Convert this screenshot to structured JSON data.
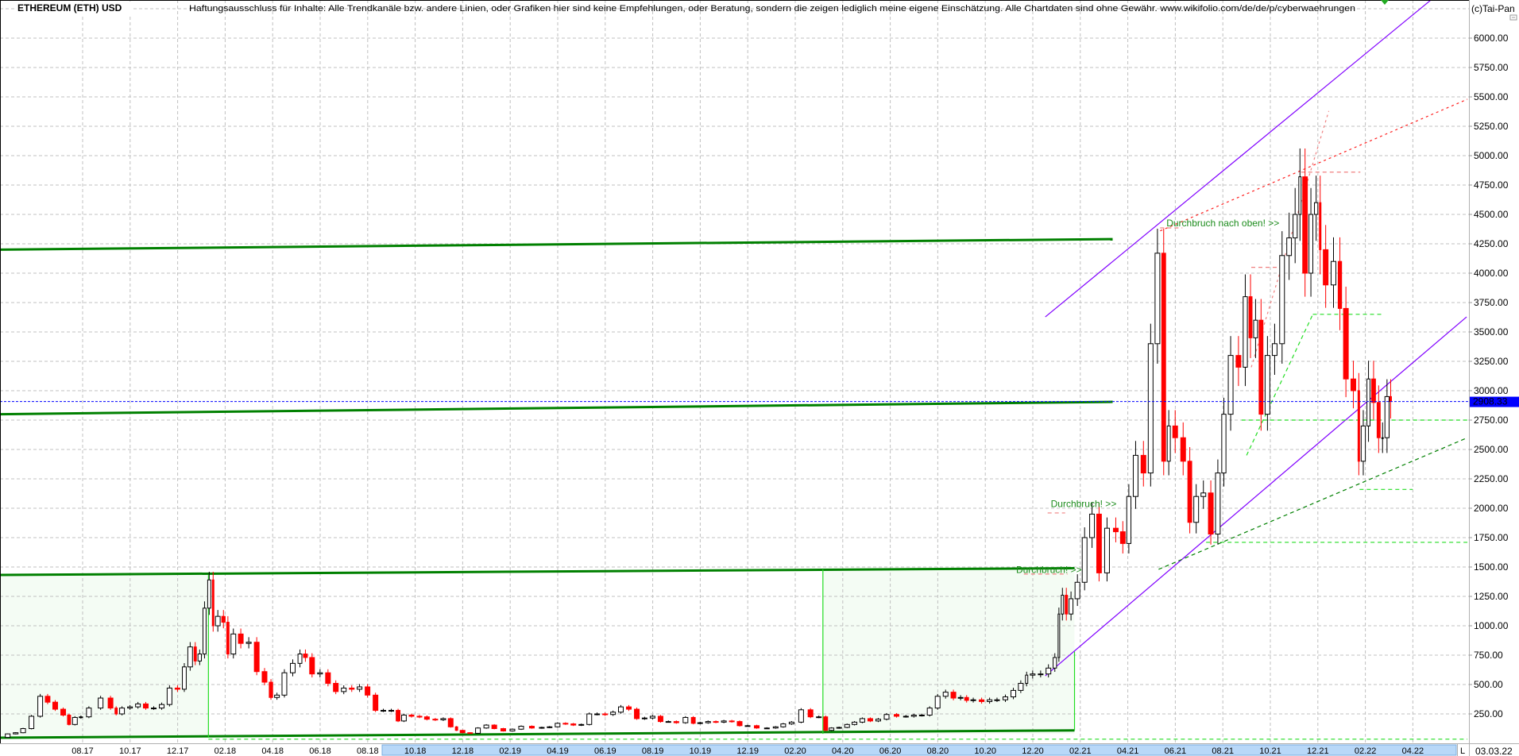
{
  "header": {
    "title": "ETHEREUM (ETH) USD",
    "disclaimer": "Haftungsausschluss für Inhalte: Alle Trendkanäle bzw. andere Linien, oder Grafiken hier sind keine Empfehlungen, oder Beratung, sondern die zeigen lediglich meine eigene Einschätzung. Alle Chartdaten sind ohne Gewähr.  www.wikifolio.com/de/de/p/cyberwaehrungen",
    "copyright": "(c)Tai-Pan"
  },
  "footer": {
    "scale_mode": "L",
    "current_date": "03.03.22"
  },
  "colors": {
    "up_candle": "#000000",
    "down_candle": "#ff0000",
    "channel_green": "#008000",
    "bright_green": "#22dd22",
    "purple": "#8000ff",
    "red_dotted": "#ff2020",
    "light_red": "#f08080",
    "price_line": "#0000ff",
    "grid": "#c0c0c0",
    "scroll_bar": "#b8d8f8"
  },
  "chart_data": {
    "type": "candlestick",
    "title": "ETHEREUM (ETH) USD",
    "ylim": [
      0,
      6250
    ],
    "y_ticks": [
      "250.00",
      "500.00",
      "750.00",
      "1000.00",
      "1250.00",
      "1500.00",
      "1750.00",
      "2000.00",
      "2250.00",
      "2500.00",
      "2750.00",
      "3000.00",
      "3250.00",
      "3500.00",
      "3750.00",
      "4000.00",
      "4250.00",
      "4500.00",
      "4750.00",
      "5000.00",
      "5250.00",
      "5500.00",
      "5750.00",
      "6000.00"
    ],
    "x_ticks": [
      "08.17",
      "10.17",
      "12.17",
      "02.18",
      "04.18",
      "06.18",
      "08.18",
      "10.18",
      "12.18",
      "02.19",
      "04.19",
      "06.19",
      "08.19",
      "10.19",
      "12.19",
      "02.20",
      "04.20",
      "06.20",
      "08.20",
      "10.20",
      "12.20",
      "02.21",
      "04.21",
      "06.21",
      "08.21",
      "10.21",
      "12.21",
      "02.22",
      "04.22"
    ],
    "grid": true,
    "last_price": {
      "value": 2908.33,
      "label": "2908.33"
    },
    "closes": [
      [
        "2017-04-20",
        50
      ],
      [
        "2017-05-01",
        80
      ],
      [
        "2017-05-10",
        90
      ],
      [
        "2017-05-20",
        125
      ],
      [
        "2017-06-01",
        230
      ],
      [
        "2017-06-12",
        400
      ],
      [
        "2017-06-20",
        350
      ],
      [
        "2017-07-01",
        290
      ],
      [
        "2017-07-10",
        240
      ],
      [
        "2017-07-16",
        160
      ],
      [
        "2017-07-25",
        220
      ],
      [
        "2017-08-01",
        225
      ],
      [
        "2017-08-15",
        300
      ],
      [
        "2017-08-31",
        385
      ],
      [
        "2017-09-10",
        300
      ],
      [
        "2017-09-15",
        250
      ],
      [
        "2017-09-25",
        300
      ],
      [
        "2017-10-05",
        310
      ],
      [
        "2017-10-15",
        335
      ],
      [
        "2017-10-25",
        300
      ],
      [
        "2017-11-05",
        300
      ],
      [
        "2017-11-15",
        330
      ],
      [
        "2017-11-25",
        470
      ],
      [
        "2017-12-05",
        460
      ],
      [
        "2017-12-12",
        650
      ],
      [
        "2017-12-20",
        820
      ],
      [
        "2017-12-25",
        700
      ],
      [
        "2018-01-01",
        760
      ],
      [
        "2018-01-07",
        1150
      ],
      [
        "2018-01-13",
        1390
      ],
      [
        "2018-01-17",
        1000
      ],
      [
        "2018-01-25",
        1080
      ],
      [
        "2018-02-01",
        1030
      ],
      [
        "2018-02-06",
        760
      ],
      [
        "2018-02-15",
        930
      ],
      [
        "2018-02-25",
        850
      ],
      [
        "2018-03-05",
        860
      ],
      [
        "2018-03-15",
        610
      ],
      [
        "2018-03-25",
        520
      ],
      [
        "2018-04-01",
        390
      ],
      [
        "2018-04-10",
        410
      ],
      [
        "2018-04-20",
        600
      ],
      [
        "2018-05-01",
        680
      ],
      [
        "2018-05-08",
        760
      ],
      [
        "2018-05-15",
        730
      ],
      [
        "2018-05-25",
        590
      ],
      [
        "2018-06-05",
        600
      ],
      [
        "2018-06-15",
        510
      ],
      [
        "2018-06-25",
        440
      ],
      [
        "2018-07-05",
        470
      ],
      [
        "2018-07-15",
        460
      ],
      [
        "2018-07-25",
        480
      ],
      [
        "2018-08-05",
        410
      ],
      [
        "2018-08-15",
        280
      ],
      [
        "2018-08-25",
        280
      ],
      [
        "2018-09-05",
        280
      ],
      [
        "2018-09-12",
        190
      ],
      [
        "2018-09-20",
        240
      ],
      [
        "2018-10-01",
        230
      ],
      [
        "2018-10-10",
        225
      ],
      [
        "2018-10-20",
        205
      ],
      [
        "2018-11-01",
        200
      ],
      [
        "2018-11-10",
        210
      ],
      [
        "2018-11-20",
        140
      ],
      [
        "2018-11-25",
        110
      ],
      [
        "2018-12-05",
        90
      ],
      [
        "2018-12-14",
        85
      ],
      [
        "2018-12-25",
        130
      ],
      [
        "2019-01-05",
        155
      ],
      [
        "2019-01-15",
        125
      ],
      [
        "2019-01-28",
        105
      ],
      [
        "2019-02-08",
        120
      ],
      [
        "2019-02-20",
        145
      ],
      [
        "2019-03-05",
        130
      ],
      [
        "2019-03-15",
        135
      ],
      [
        "2019-03-25",
        140
      ],
      [
        "2019-04-05",
        170
      ],
      [
        "2019-04-15",
        165
      ],
      [
        "2019-04-25",
        155
      ],
      [
        "2019-05-05",
        160
      ],
      [
        "2019-05-15",
        250
      ],
      [
        "2019-05-25",
        250
      ],
      [
        "2019-06-05",
        245
      ],
      [
        "2019-06-15",
        265
      ],
      [
        "2019-06-25",
        310
      ],
      [
        "2019-07-05",
        290
      ],
      [
        "2019-07-15",
        210
      ],
      [
        "2019-07-25",
        215
      ],
      [
        "2019-08-05",
        230
      ],
      [
        "2019-08-15",
        185
      ],
      [
        "2019-08-25",
        185
      ],
      [
        "2019-09-05",
        175
      ],
      [
        "2019-09-18",
        220
      ],
      [
        "2019-09-25",
        170
      ],
      [
        "2019-10-05",
        175
      ],
      [
        "2019-10-15",
        185
      ],
      [
        "2019-10-25",
        180
      ],
      [
        "2019-11-05",
        190
      ],
      [
        "2019-11-15",
        185
      ],
      [
        "2019-11-25",
        150
      ],
      [
        "2019-12-05",
        150
      ],
      [
        "2019-12-18",
        130
      ],
      [
        "2019-12-31",
        130
      ],
      [
        "2020-01-10",
        140
      ],
      [
        "2020-01-20",
        165
      ],
      [
        "2020-02-01",
        180
      ],
      [
        "2020-02-14",
        285
      ],
      [
        "2020-02-25",
        225
      ],
      [
        "2020-03-05",
        225
      ],
      [
        "2020-03-12",
        110
      ],
      [
        "2020-03-20",
        130
      ],
      [
        "2020-04-01",
        135
      ],
      [
        "2020-04-10",
        160
      ],
      [
        "2020-04-20",
        180
      ],
      [
        "2020-04-30",
        210
      ],
      [
        "2020-05-10",
        190
      ],
      [
        "2020-05-20",
        205
      ],
      [
        "2020-06-01",
        245
      ],
      [
        "2020-06-15",
        230
      ],
      [
        "2020-06-25",
        230
      ],
      [
        "2020-07-05",
        240
      ],
      [
        "2020-07-15",
        240
      ],
      [
        "2020-07-25",
        300
      ],
      [
        "2020-08-05",
        400
      ],
      [
        "2020-08-15",
        435
      ],
      [
        "2020-08-25",
        385
      ],
      [
        "2020-09-03",
        390
      ],
      [
        "2020-09-10",
        365
      ],
      [
        "2020-09-20",
        370
      ],
      [
        "2020-10-01",
        355
      ],
      [
        "2020-10-10",
        370
      ],
      [
        "2020-10-20",
        370
      ],
      [
        "2020-11-01",
        395
      ],
      [
        "2020-11-10",
        450
      ],
      [
        "2020-11-20",
        510
      ],
      [
        "2020-11-25",
        580
      ],
      [
        "2020-12-05",
        590
      ],
      [
        "2020-12-15",
        590
      ],
      [
        "2020-12-25",
        640
      ],
      [
        "2021-01-01",
        730
      ],
      [
        "2021-01-05",
        1100
      ],
      [
        "2021-01-10",
        1260
      ],
      [
        "2021-01-15",
        1100
      ],
      [
        "2021-01-22",
        1230
      ],
      [
        "2021-02-01",
        1370
      ],
      [
        "2021-02-10",
        1750
      ],
      [
        "2021-02-20",
        1950
      ],
      [
        "2021-02-28",
        1450
      ],
      [
        "2021-03-10",
        1830
      ],
      [
        "2021-03-20",
        1800
      ],
      [
        "2021-03-28",
        1700
      ],
      [
        "2021-04-05",
        2100
      ],
      [
        "2021-04-15",
        2450
      ],
      [
        "2021-04-25",
        2300
      ],
      [
        "2021-05-03",
        3400
      ],
      [
        "2021-05-12",
        4170
      ],
      [
        "2021-05-19",
        2400
      ],
      [
        "2021-05-25",
        2700
      ],
      [
        "2021-06-05",
        2600
      ],
      [
        "2021-06-15",
        2400
      ],
      [
        "2021-06-22",
        1880
      ],
      [
        "2021-07-01",
        2100
      ],
      [
        "2021-07-10",
        2130
      ],
      [
        "2021-07-20",
        1780
      ],
      [
        "2021-07-28",
        2300
      ],
      [
        "2021-08-05",
        2800
      ],
      [
        "2021-08-15",
        3300
      ],
      [
        "2021-08-25",
        3200
      ],
      [
        "2021-09-02",
        3800
      ],
      [
        "2021-09-08",
        3450
      ],
      [
        "2021-09-15",
        3600
      ],
      [
        "2021-09-22",
        2800
      ],
      [
        "2021-10-01",
        3300
      ],
      [
        "2021-10-10",
        3400
      ],
      [
        "2021-10-20",
        4150
      ],
      [
        "2021-10-28",
        4300
      ],
      [
        "2021-11-05",
        4500
      ],
      [
        "2021-11-10",
        4820
      ],
      [
        "2021-11-18",
        4000
      ],
      [
        "2021-11-25",
        4500
      ],
      [
        "2021-12-01",
        4600
      ],
      [
        "2021-12-05",
        4200
      ],
      [
        "2021-12-15",
        3900
      ],
      [
        "2021-12-25",
        4100
      ],
      [
        "2022-01-01",
        3700
      ],
      [
        "2022-01-10",
        3100
      ],
      [
        "2022-01-20",
        3000
      ],
      [
        "2022-01-24",
        2400
      ],
      [
        "2022-02-01",
        2700
      ],
      [
        "2022-02-07",
        3100
      ],
      [
        "2022-02-14",
        2900
      ],
      [
        "2022-02-20",
        2600
      ],
      [
        "2022-02-24",
        2600
      ],
      [
        "2022-03-01",
        2950
      ],
      [
        "2022-03-03",
        2908.33
      ]
    ],
    "lines": [
      {
        "kind": "channel",
        "color": "#008000",
        "style": "thick",
        "points": [
          [
            "2017-04-15",
            4200
          ],
          [
            "2021-03-12",
            4290
          ]
        ]
      },
      {
        "kind": "channel",
        "color": "#008000",
        "style": "thick",
        "points": [
          [
            "2017-04-15",
            2800
          ],
          [
            "2021-03-12",
            2905
          ]
        ]
      },
      {
        "kind": "channel",
        "color": "#008000",
        "style": "thick",
        "points": [
          [
            "2017-04-15",
            1432
          ],
          [
            "2021-01-24",
            1490
          ]
        ]
      },
      {
        "kind": "channel",
        "color": "#008000",
        "style": "thick",
        "points": [
          [
            "2017-04-15",
            47
          ],
          [
            "2021-01-24",
            110
          ]
        ]
      },
      {
        "kind": "vertical",
        "color": "#22dd22",
        "style": "thin",
        "points": [
          [
            "2018-01-10",
            47
          ],
          [
            "2018-01-10",
            1432
          ]
        ]
      },
      {
        "kind": "vertical",
        "color": "#22dd22",
        "style": "thin",
        "points": [
          [
            "2020-03-06",
            80
          ],
          [
            "2020-03-06",
            1480
          ]
        ]
      },
      {
        "kind": "vertical",
        "color": "#22dd22",
        "style": "thin",
        "points": [
          [
            "2021-01-24",
            110
          ],
          [
            "2021-01-24",
            780
          ]
        ]
      },
      {
        "kind": "trend",
        "color": "#8000ff",
        "style": "thin",
        "points": [
          [
            "2020-12-17",
            3628
          ],
          [
            "2022-04-24",
            6324
          ]
        ]
      },
      {
        "kind": "trend",
        "color": "#8000ff",
        "style": "thin",
        "points": [
          [
            "2020-12-17",
            574
          ],
          [
            "2022-06-09",
            3628
          ]
        ]
      },
      {
        "kind": "trend",
        "color": "#ff2020",
        "style": "dotted",
        "points": [
          [
            "2021-05-12",
            4360
          ],
          [
            "2022-06-10",
            5480
          ]
        ]
      },
      {
        "kind": "trend",
        "color": "#f08080",
        "style": "dotted",
        "points": [
          [
            "2021-09-07",
            3200
          ],
          [
            "2021-12-15",
            5380
          ]
        ]
      },
      {
        "kind": "level",
        "color": "#f08080",
        "style": "dashed",
        "points": [
          [
            "2021-05-12",
            4385
          ],
          [
            "2021-06-10",
            4385
          ]
        ]
      },
      {
        "kind": "level",
        "color": "#f08080",
        "style": "dashed",
        "points": [
          [
            "2021-09-07",
            4050
          ],
          [
            "2021-10-15",
            4050
          ]
        ]
      },
      {
        "kind": "level",
        "color": "#f08080",
        "style": "dashed",
        "points": [
          [
            "2021-11-10",
            4860
          ],
          [
            "2022-01-25",
            4860
          ]
        ]
      },
      {
        "kind": "level",
        "color": "#f08080",
        "style": "dashed",
        "points": [
          [
            "2020-11-20",
            1440
          ],
          [
            "2021-01-15",
            1440
          ]
        ]
      },
      {
        "kind": "level",
        "color": "#f08080",
        "style": "dashed",
        "points": [
          [
            "2020-12-20",
            1960
          ],
          [
            "2021-01-12",
            1960
          ]
        ]
      },
      {
        "kind": "level",
        "color": "#22dd22",
        "style": "dashed",
        "points": [
          [
            "2021-08-25",
            2750
          ],
          [
            "2022-06-10",
            2750
          ]
        ]
      },
      {
        "kind": "level",
        "color": "#22dd22",
        "style": "dashed",
        "points": [
          [
            "2021-11-25",
            3650
          ],
          [
            "2022-02-25",
            3650
          ]
        ]
      },
      {
        "kind": "trend",
        "color": "#22dd22",
        "style": "dashed",
        "points": [
          [
            "2021-09-01",
            2450
          ],
          [
            "2021-11-25",
            3650
          ]
        ]
      },
      {
        "kind": "level",
        "color": "#22dd22",
        "style": "dashed",
        "points": [
          [
            "2022-01-24",
            2160
          ],
          [
            "2022-03-31",
            2160
          ]
        ]
      },
      {
        "kind": "level",
        "color": "#22dd22",
        "style": "dashed",
        "points": [
          [
            "2021-07-10",
            1710
          ],
          [
            "2022-06-10",
            1710
          ]
        ]
      },
      {
        "kind": "level",
        "color": "#22dd22",
        "style": "dashed",
        "points": [
          [
            "2018-01-10",
            35
          ],
          [
            "2022-06-10",
            35
          ]
        ]
      },
      {
        "kind": "trend",
        "color": "#008000",
        "style": "dashed",
        "points": [
          [
            "2021-05-10",
            1480
          ],
          [
            "2022-06-10",
            2600
          ]
        ]
      }
    ],
    "zones": [
      {
        "color": "#f4fcf4",
        "from": "2017-04-15",
        "to": "2018-01-10",
        "low": 47,
        "high": 1432
      },
      {
        "color": "#f4fcf4",
        "from": "2020-03-06",
        "to": "2021-01-24",
        "low": 80,
        "high": 1480
      }
    ],
    "annotations": [
      {
        "text": "Durchbruch nach oben! >>",
        "date": "2021-05-20",
        "price": 4400
      },
      {
        "text": "Durchbruch! >>",
        "date": "2020-12-24",
        "price": 2010
      },
      {
        "text": "Durchbruch! >>",
        "date": "2020-11-10",
        "price": 1450
      }
    ]
  }
}
